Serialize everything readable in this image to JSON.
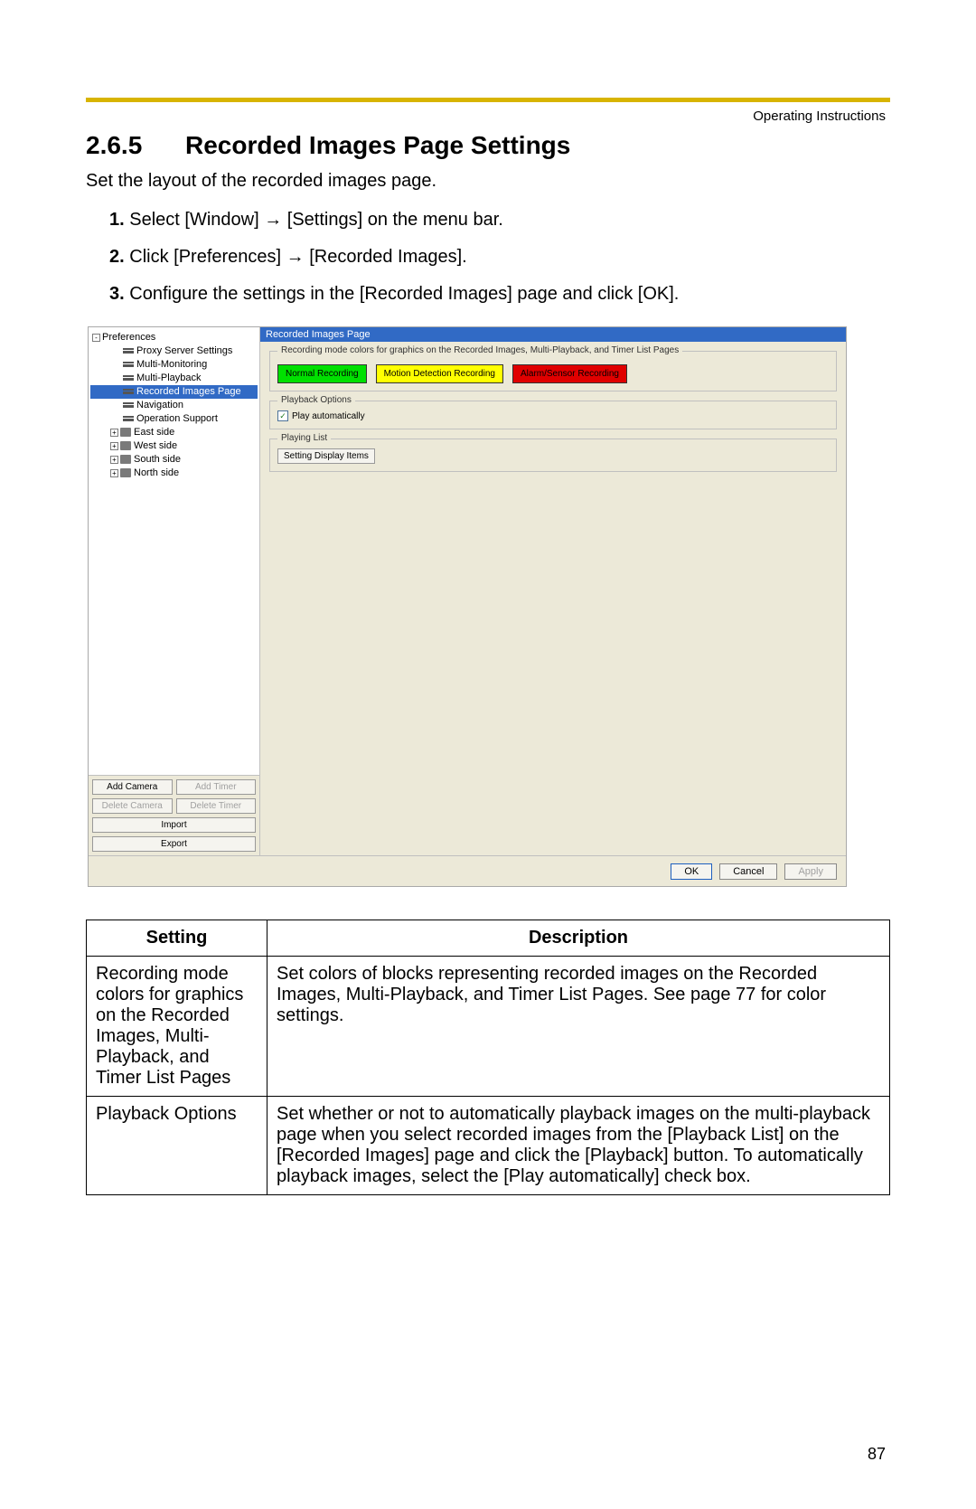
{
  "header_right": "Operating Instructions",
  "section_number": "2.6.5",
  "section_title": "Recorded Images Page Settings",
  "intro": "Set the layout of the recorded images page.",
  "steps": [
    {
      "num": "1.",
      "text_a": "Select [Window] ",
      "text_b": " [Settings] on the menu bar."
    },
    {
      "num": "2.",
      "text_a": "Click [Preferences] ",
      "text_b": " [Recorded Images]."
    },
    {
      "num": "3.",
      "text_a": "Configure the settings in the [Recorded Images] page and click [OK].",
      "text_b": ""
    }
  ],
  "arrow_glyph": "→",
  "screenshot": {
    "tree": [
      {
        "level": 0,
        "expander": "-",
        "iconClass": "",
        "label": "Preferences",
        "selected": false
      },
      {
        "level": 2,
        "expander": "",
        "iconClass": "list-ic",
        "label": "Proxy Server Settings",
        "selected": false
      },
      {
        "level": 2,
        "expander": "",
        "iconClass": "list-ic",
        "label": "Multi-Monitoring",
        "selected": false
      },
      {
        "level": 2,
        "expander": "",
        "iconClass": "list-ic",
        "label": "Multi-Playback",
        "selected": false
      },
      {
        "level": 2,
        "expander": "",
        "iconClass": "list-ic",
        "label": "Recorded Images Page",
        "selected": true
      },
      {
        "level": 2,
        "expander": "",
        "iconClass": "list-ic",
        "label": "Navigation",
        "selected": false
      },
      {
        "level": 2,
        "expander": "",
        "iconClass": "list-ic",
        "label": "Operation Support",
        "selected": false
      },
      {
        "level": 1,
        "expander": "+",
        "iconClass": "camera-ic",
        "label": "East side",
        "selected": false
      },
      {
        "level": 1,
        "expander": "+",
        "iconClass": "camera-ic",
        "label": "West side",
        "selected": false
      },
      {
        "level": 1,
        "expander": "+",
        "iconClass": "camera-ic",
        "label": "South side",
        "selected": false
      },
      {
        "level": 1,
        "expander": "+",
        "iconClass": "camera-ic",
        "label": "North side",
        "selected": false
      }
    ],
    "tree_buttons": [
      {
        "label": "Add Camera",
        "disabled": false,
        "full": false
      },
      {
        "label": "Add Timer",
        "disabled": true,
        "full": false
      },
      {
        "label": "Delete Camera",
        "disabled": true,
        "full": false
      },
      {
        "label": "Delete Timer",
        "disabled": true,
        "full": false
      },
      {
        "label": "Import",
        "disabled": false,
        "full": true
      },
      {
        "label": "Export",
        "disabled": false,
        "full": true
      }
    ],
    "right_header": "Recorded Images Page",
    "group1": {
      "legend": "Recording mode colors for graphics on the Recorded Images, Multi-Playback, and Timer List Pages",
      "blocks": [
        {
          "label": "Normal Recording",
          "cls": "cb-green",
          "bg": "#00e000",
          "fg": "#000000"
        },
        {
          "label": "Motion Detection Recording",
          "cls": "cb-yellow",
          "bg": "#ffff00",
          "fg": "#000000"
        },
        {
          "label": "Alarm/Sensor Recording",
          "cls": "cb-red",
          "bg": "#e00000",
          "fg": "#000000"
        }
      ]
    },
    "group2": {
      "legend": "Playback Options",
      "checkbox_label": "Play automatically",
      "checked": true
    },
    "group3": {
      "legend": "Playing List",
      "button_label": "Setting Display Items"
    },
    "footer": [
      {
        "label": "OK",
        "cls": "primary",
        "interactable": true
      },
      {
        "label": "Cancel",
        "cls": "",
        "interactable": true
      },
      {
        "label": "Apply",
        "cls": "disabled",
        "interactable": false
      }
    ]
  },
  "table": {
    "headers": [
      "Setting",
      "Description"
    ],
    "rows": [
      {
        "setting": "Recording mode colors for graphics on the Recorded Images, Multi-Playback, and Timer List Pages",
        "description": "Set colors of blocks representing recorded images on the Recorded Images, Multi-Playback, and Timer List Pages. See page 77 for color settings."
      },
      {
        "setting": "Playback Options",
        "description": "Set whether or not to automatically playback images on the multi-playback page when you select recorded images from the [Playback List] on the [Recorded Images] page and click the [Playback] button. To automatically playback images, select the [Play automatically] check box."
      }
    ]
  },
  "page_number": "87",
  "colors": {
    "accent_bar": "#d8b400",
    "selection": "#316ac5",
    "panel_bg": "#ece9d8"
  }
}
